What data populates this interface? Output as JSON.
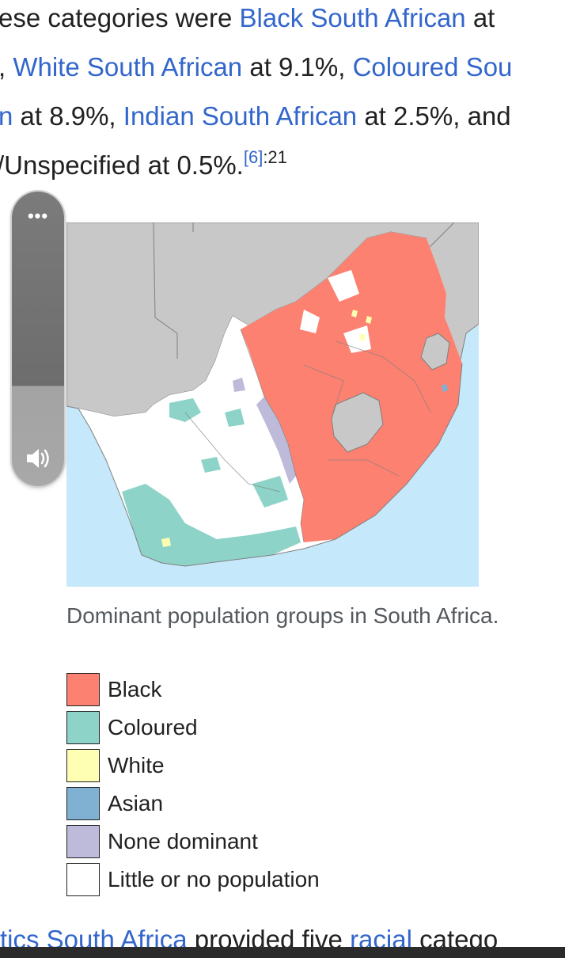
{
  "article": {
    "line1": {
      "text_a": "ese categories were ",
      "link_a": "Black South African",
      "text_b": " at"
    },
    "line2": {
      "text_a": ", ",
      "link_a": "White South African",
      "text_b": " at 9.1%, ",
      "link_b": "Coloured Sou"
    },
    "line3": {
      "link_a": "n",
      "text_a": " at 8.9%, ",
      "link_b": "Indian South African",
      "text_b": " at 2.5%, and"
    },
    "line4": {
      "text_a": "/Unspecified at 0.5%.",
      "ref": "[6]",
      "ref_page": ":21"
    }
  },
  "player": {
    "more_label": "•••",
    "more_icon": "more-dots-icon",
    "volume_icon": "speaker-icon"
  },
  "figure": {
    "caption": "Dominant population groups in South Africa.",
    "legend": [
      {
        "label": "Black",
        "color": "#fc8170"
      },
      {
        "label": "Coloured",
        "color": "#8dd3c7"
      },
      {
        "label": "White",
        "color": "#ffffb3"
      },
      {
        "label": "Asian",
        "color": "#80b1d3"
      },
      {
        "label": "None dominant",
        "color": "#bebada"
      },
      {
        "label": "Little or no population",
        "color": "#ffffff"
      }
    ],
    "colors": {
      "sea": "#c6e8fb",
      "neighbours": "#c8c8c8",
      "borders": "#7f7f7f"
    }
  },
  "bottom": {
    "link_a": "tics South Africa",
    "text_a": " provided five ",
    "link_b": "racial",
    "text_b": " catego"
  }
}
